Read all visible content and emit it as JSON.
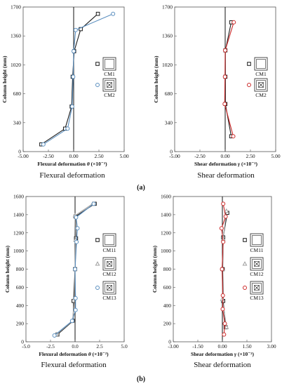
{
  "chart_data": [
    {
      "type": "line",
      "xlabel_prefix": "Flexural deformation",
      "xlabel_symbol": "θ",
      "xlabel_unit": "(×10⁻²)",
      "ylabel": "Column height (mm)",
      "xlim": [
        -5.0,
        5.0
      ],
      "ylim": [
        0,
        1700
      ],
      "xticks": [
        "-5.00",
        "-2.50",
        "0.00",
        "2.50",
        "5.00"
      ],
      "yticks": [
        "0",
        "340",
        "680",
        "1020",
        "1360",
        "1700"
      ],
      "caption": "Flexural deformation",
      "series": [
        {
          "name": "CM1",
          "marker": "square",
          "color": "#1a1a1a",
          "points": [
            [
              -3.2,
              85
            ],
            [
              -0.85,
              270
            ],
            [
              -0.2,
              530
            ],
            [
              -0.1,
              880
            ],
            [
              0.05,
              1180
            ],
            [
              0.7,
              1440
            ],
            [
              2.4,
              1620
            ]
          ]
        },
        {
          "name": "CM2",
          "marker": "circle",
          "color": "#5b8fbf",
          "points": [
            [
              -3.0,
              85
            ],
            [
              -0.6,
              270
            ],
            [
              -0.15,
              530
            ],
            [
              -0.05,
              880
            ],
            [
              0.0,
              1180
            ],
            [
              0.2,
              1430
            ],
            [
              3.9,
              1620
            ]
          ]
        }
      ]
    },
    {
      "type": "line",
      "xlabel_prefix": "Shear deformation",
      "xlabel_symbol": "γ",
      "xlabel_unit": "(×10⁻²)",
      "ylabel": "Column height (mm)",
      "xlim": [
        -5.0,
        5.0
      ],
      "ylim": [
        0,
        1700
      ],
      "xticks": [
        "-5.00",
        "-2.50",
        "0.00",
        "2.50",
        "5.00"
      ],
      "yticks": [
        "0",
        "340",
        "680",
        "1020",
        "1360",
        "1700"
      ],
      "caption": "Shear deformation",
      "series": [
        {
          "name": "CM1",
          "marker": "square",
          "color": "#1a1a1a",
          "points": [
            [
              0.6,
              180
            ],
            [
              0.02,
              560
            ],
            [
              0.02,
              880
            ],
            [
              0.02,
              1190
            ],
            [
              0.6,
              1520
            ]
          ]
        },
        {
          "name": "CM2",
          "marker": "circle",
          "color": "#cc2a2a",
          "points": [
            [
              0.8,
              180
            ],
            [
              -0.05,
              560
            ],
            [
              -0.02,
              880
            ],
            [
              0.0,
              1190
            ],
            [
              0.85,
              1520
            ]
          ]
        }
      ]
    },
    {
      "type": "line",
      "xlabel_prefix": "Flexural deformation",
      "xlabel_symbol": "θ",
      "xlabel_unit": "(×10⁻²)",
      "ylabel": "Column height (mm)",
      "xlim": [
        -5.0,
        5.0
      ],
      "ylim": [
        0,
        1600
      ],
      "xticks": [
        "-5.0",
        "-2.5",
        "0.0",
        "2.5",
        "5.0"
      ],
      "yticks": [
        "0",
        "200",
        "400",
        "600",
        "800",
        "1000",
        "1200",
        "1400",
        "1600"
      ],
      "caption": "Flexural deformation",
      "series": [
        {
          "name": "CM11",
          "marker": "square",
          "color": "#1a1a1a",
          "points": [
            [
              -1.8,
              80
            ],
            [
              -0.2,
              230
            ],
            [
              -0.15,
              450
            ],
            [
              0.0,
              800
            ],
            [
              0.1,
              1140
            ],
            [
              0.05,
              1380
            ],
            [
              2.0,
              1520
            ]
          ]
        },
        {
          "name": "CM12",
          "marker": "triangle",
          "color": "#a0a0a0",
          "points": [
            [
              -1.9,
              80
            ],
            [
              -0.25,
              230
            ],
            [
              -0.05,
              480
            ],
            [
              0.0,
              800
            ],
            [
              0.05,
              1120
            ],
            [
              0.0,
              1390
            ],
            [
              1.8,
              1520
            ]
          ]
        },
        {
          "name": "CM13",
          "marker": "circle",
          "color": "#5b8fbf",
          "points": [
            [
              -2.1,
              70
            ],
            [
              -0.3,
              230
            ],
            [
              0.05,
              350
            ],
            [
              0.05,
              480
            ],
            [
              0.0,
              800
            ],
            [
              0.15,
              1100
            ],
            [
              0.25,
              1250
            ],
            [
              0.1,
              1370
            ],
            [
              1.9,
              1520
            ]
          ]
        }
      ]
    },
    {
      "type": "line",
      "xlabel_prefix": "Shear deformation",
      "xlabel_symbol": "γ",
      "xlabel_unit": "(×10⁻²)",
      "ylabel": "Column height (mm)",
      "xlim": [
        -3.0,
        3.0
      ],
      "ylim": [
        0,
        1600
      ],
      "xticks": [
        "-3.00",
        "-1.50",
        "0.00",
        "1.50",
        "3.00"
      ],
      "yticks": [
        "0",
        "200",
        "400",
        "600",
        "800",
        "1000",
        "1200",
        "1400",
        "1600"
      ],
      "caption": "Shear deformation",
      "series": [
        {
          "name": "CM11",
          "marker": "square",
          "color": "#1a1a1a",
          "points": [
            [
              0.2,
              160
            ],
            [
              0.05,
              450
            ],
            [
              0.02,
              800
            ],
            [
              0.05,
              1150
            ],
            [
              0.3,
              1420
            ]
          ]
        },
        {
          "name": "CM12",
          "marker": "triangle",
          "color": "#a0a0a0",
          "points": [
            [
              0.25,
              160
            ],
            [
              0.0,
              470
            ],
            [
              0.0,
              800
            ],
            [
              0.05,
              1130
            ],
            [
              0.25,
              1440
            ]
          ]
        },
        {
          "name": "CM13",
          "marker": "circle",
          "color": "#cc2a2a",
          "points": [
            [
              0.1,
              80
            ],
            [
              0.15,
              200
            ],
            [
              0.02,
              360
            ],
            [
              0.03,
              510
            ],
            [
              -0.02,
              800
            ],
            [
              0.05,
              1100
            ],
            [
              -0.05,
              1250
            ],
            [
              0.2,
              1380
            ],
            [
              0.05,
              1520
            ]
          ]
        }
      ]
    }
  ],
  "panel_labels": [
    "(a)",
    "(b)"
  ]
}
